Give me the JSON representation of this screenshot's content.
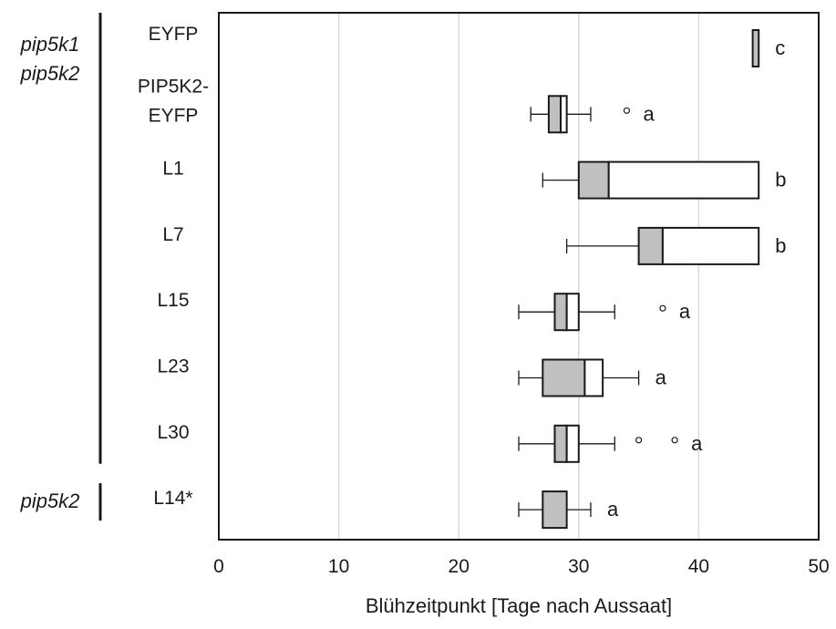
{
  "chart_data": {
    "type": "boxplot",
    "orientation": "horizontal",
    "xlabel": "Blühzeitpunkt [Tage nach Aussaat]",
    "xlim": [
      0,
      50
    ],
    "x_ticks": [
      "0",
      "10",
      "20",
      "30",
      "40",
      "50"
    ],
    "grid": "vertical",
    "groups": [
      {
        "label_lines": [
          "pip5k1",
          "pip5k2"
        ],
        "categories": [
          "EYFP",
          "PIP5K2-EYFP",
          "L1",
          "L7",
          "L15",
          "L23",
          "L30"
        ]
      },
      {
        "label_lines": [
          "pip5k2"
        ],
        "categories": [
          "L14*"
        ]
      }
    ],
    "series": [
      {
        "label_lines": [
          "EYFP"
        ],
        "min": 44.5,
        "q1": 44.5,
        "median": 44.5,
        "q3": 45,
        "max": 45,
        "outliers": [],
        "letter": "c"
      },
      {
        "label_lines": [
          "PIP5K2-",
          "EYFP"
        ],
        "min": 26,
        "q1": 27.5,
        "median": 28.5,
        "q3": 29,
        "max": 31,
        "outliers": [
          34
        ],
        "letter": "a"
      },
      {
        "label_lines": [
          "L1"
        ],
        "min": 27,
        "q1": 30,
        "median": 32.5,
        "q3": 45,
        "max": 45,
        "outliers": [],
        "letter": "b"
      },
      {
        "label_lines": [
          "L7"
        ],
        "min": 29,
        "q1": 35,
        "median": 37,
        "q3": 45,
        "max": 45,
        "outliers": [],
        "letter": "b"
      },
      {
        "label_lines": [
          "L15"
        ],
        "min": 25,
        "q1": 28,
        "median": 29,
        "q3": 30,
        "max": 33,
        "outliers": [
          37
        ],
        "letter": "a"
      },
      {
        "label_lines": [
          "L23"
        ],
        "min": 25,
        "q1": 27,
        "median": 30.5,
        "q3": 32,
        "max": 35,
        "outliers": [],
        "letter": "a"
      },
      {
        "label_lines": [
          "L30"
        ],
        "min": 25,
        "q1": 28,
        "median": 29,
        "q3": 30,
        "max": 33,
        "outliers": [
          35,
          38
        ],
        "letter": "a"
      },
      {
        "label_lines": [
          "L14*"
        ],
        "min": 25,
        "q1": 27,
        "median": 29,
        "q3": 29,
        "max": 31,
        "outliers": [],
        "letter": "a"
      }
    ]
  },
  "colors": {
    "lower_box": "#c0c0c0",
    "upper_box": "#ffffff",
    "stroke": "#1a1a1a",
    "grid": "#d9d9d9"
  }
}
